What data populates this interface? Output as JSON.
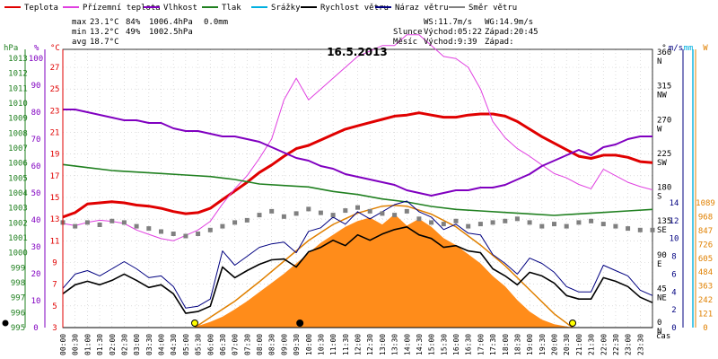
{
  "header": {
    "legend": [
      {
        "name": "Teplota",
        "color": "#e00000"
      },
      {
        "name": "Přízemní teplota",
        "color": "#e040e0"
      },
      {
        "name": "Vlhkost",
        "color": "#8000c0"
      },
      {
        "name": "Tlak",
        "color": "#208020"
      },
      {
        "name": "Srážky",
        "color": "#00b0e0"
      },
      {
        "name": "Rychlost větru",
        "color": "#000000"
      },
      {
        "name": "Náraz větru",
        "color": "#000080"
      },
      {
        "name": "Směr větru",
        "color": "#808080"
      }
    ],
    "stats": {
      "max_label": "max",
      "max_temp": "23.1°C",
      "max_hum": "84%",
      "max_press": "1006.4hPa",
      "max_rain": "0.0mm",
      "min_label": "min",
      "min_temp": "13.2°C",
      "min_hum": "49%",
      "min_press": "1002.5hPa",
      "avg_label": "avg",
      "avg_temp": "18.7°C"
    },
    "wind": {
      "ws": "WS:11.7m/s",
      "wg": "WG:14.9m/s"
    },
    "sun": {
      "label": "Slunce",
      "rise": "Východ:05:22",
      "set": "Západ:20:45"
    },
    "moon": {
      "label": "Měsíc",
      "rise": "Východ:9:39",
      "set": "Západ:"
    }
  },
  "chart_data": {
    "type": "line",
    "title": "16.5.2013",
    "xlabel": "čas",
    "x_ticks": [
      "00:00",
      "00:30",
      "01:00",
      "01:30",
      "02:00",
      "02:30",
      "03:00",
      "03:30",
      "04:00",
      "04:30",
      "05:00",
      "05:30",
      "06:00",
      "06:30",
      "07:00",
      "07:30",
      "08:00",
      "08:30",
      "09:00",
      "09:30",
      "10:00",
      "10:30",
      "11:00",
      "11:30",
      "12:00",
      "12:30",
      "13:00",
      "13:30",
      "14:00",
      "14:30",
      "15:00",
      "15:30",
      "16:00",
      "16:30",
      "17:00",
      "17:30",
      "18:00",
      "18:30",
      "19:00",
      "19:30",
      "20:00",
      "20:30",
      "21:00",
      "21:30",
      "22:00",
      "22:30",
      "23:00",
      "23:30"
    ],
    "axes": {
      "hpa": {
        "label": "hPa",
        "color": "#208020",
        "ticks": [
          995,
          996,
          997,
          998,
          999,
          1000,
          1001,
          1002,
          1003,
          1004,
          1005,
          1006,
          1007,
          1008,
          1009,
          1010,
          1011,
          1012,
          1013
        ]
      },
      "percent": {
        "label": "%",
        "color": "#8000c0",
        "ticks": [
          0,
          10,
          20,
          30,
          40,
          50,
          60,
          70,
          80,
          90,
          100
        ]
      },
      "celsius": {
        "label": "°C",
        "color": "#e00000",
        "ticks": [
          3,
          5,
          7,
          9,
          11,
          13,
          15,
          17,
          19,
          21,
          23,
          25,
          27
        ]
      },
      "degrees": {
        "label": "°",
        "color": "#000000",
        "ticks": [
          0,
          45,
          90,
          135,
          180,
          225,
          270,
          315,
          360
        ]
      },
      "compass": [
        "N",
        "NE",
        "E",
        "SE",
        "S",
        "SW",
        "W",
        "NW",
        "N"
      ],
      "ms": {
        "label": "m/s",
        "color": "#000080",
        "ticks": [
          0,
          2,
          4,
          6,
          8,
          10,
          12,
          14
        ]
      },
      "mm": {
        "label": "mm",
        "color": "#00b0e0"
      },
      "wm2": {
        "label": "W",
        "color": "#e08000",
        "ticks": [
          0,
          121,
          242,
          363,
          484,
          605,
          726,
          847,
          968,
          1089
        ]
      }
    },
    "series": [
      {
        "name": "Teplota",
        "color": "#e00000",
        "unit": "°C",
        "x": [
          0,
          0.5,
          1,
          1.5,
          2,
          2.5,
          3,
          3.5,
          4,
          4.5,
          5,
          5.5,
          6,
          6.5,
          7,
          7.5,
          8,
          8.5,
          9,
          9.5,
          10,
          10.5,
          11,
          11.5,
          12,
          12.5,
          13,
          13.5,
          14,
          14.5,
          15,
          15.5,
          16,
          16.5,
          17,
          17.5,
          18,
          18.5,
          19,
          19.5,
          20,
          20.5,
          21,
          21.5,
          22,
          22.5,
          23,
          23.5,
          24
        ],
        "y": [
          13.2,
          13.6,
          14.4,
          14.5,
          14.6,
          14.5,
          14.3,
          14.2,
          14.0,
          13.7,
          13.5,
          13.6,
          14.0,
          14.8,
          15.6,
          16.4,
          17.3,
          18.0,
          18.8,
          19.5,
          19.8,
          20.3,
          20.8,
          21.3,
          21.6,
          21.9,
          22.2,
          22.5,
          22.6,
          22.8,
          22.6,
          22.4,
          22.4,
          22.6,
          22.7,
          22.7,
          22.5,
          22.0,
          21.3,
          20.6,
          20.0,
          19.4,
          18.8,
          18.6,
          18.9,
          18.9,
          18.7,
          18.3,
          18.2
        ]
      },
      {
        "name": "Přízemní teplota",
        "color": "#e040e0",
        "unit": "°C",
        "x": [
          0,
          0.5,
          1,
          1.5,
          2,
          2.5,
          3,
          3.5,
          4,
          4.5,
          5,
          5.5,
          6,
          6.5,
          7,
          7.5,
          8,
          8.5,
          9,
          9.5,
          10,
          10.5,
          11,
          11.5,
          12,
          12.5,
          13,
          13.5,
          14,
          14.5,
          15,
          15.5,
          16,
          16.5,
          17,
          17.5,
          18,
          18.5,
          19,
          19.5,
          20,
          20.5,
          21,
          21.5,
          22,
          22.5,
          23,
          23.5,
          24
        ],
        "y": [
          12.6,
          12.4,
          12.7,
          12.9,
          12.8,
          12.6,
          12.0,
          11.6,
          11.2,
          11.0,
          11.5,
          12.0,
          12.8,
          14.4,
          15.8,
          17.0,
          18.6,
          20.4,
          24.0,
          26.0,
          24.0,
          25.0,
          26.0,
          27.0,
          28.0,
          28.5,
          29.0,
          29.0,
          30.0,
          30.0,
          29.0,
          28.0,
          27.8,
          27.0,
          25.0,
          22.0,
          20.5,
          19.5,
          18.8,
          18.0,
          17.2,
          16.8,
          16.2,
          15.8,
          17.6,
          17.0,
          16.4,
          16.0,
          15.7
        ]
      },
      {
        "name": "Vlhkost",
        "color": "#8000c0",
        "unit": "%",
        "x": [
          0,
          0.5,
          1,
          1.5,
          2,
          2.5,
          3,
          3.5,
          4,
          4.5,
          5,
          5.5,
          6,
          6.5,
          7,
          7.5,
          8,
          8.5,
          9,
          9.5,
          10,
          10.5,
          11,
          11.5,
          12,
          12.5,
          13,
          13.5,
          14,
          14.5,
          15,
          15.5,
          16,
          16.5,
          17,
          17.5,
          18,
          18.5,
          19,
          19.5,
          20,
          20.5,
          21,
          21.5,
          22,
          22.5,
          23,
          23.5,
          24
        ],
        "y": [
          81,
          81,
          80,
          79,
          78,
          77,
          77,
          76,
          76,
          74,
          73,
          73,
          72,
          71,
          71,
          70,
          69,
          67,
          65,
          63,
          62,
          60,
          59,
          57,
          56,
          55,
          54,
          53,
          51,
          50,
          49,
          50,
          51,
          51,
          52,
          52,
          53,
          55,
          57,
          60,
          62,
          64,
          66,
          64,
          67,
          68,
          70,
          71,
          71
        ]
      },
      {
        "name": "Tlak",
        "color": "#208020",
        "unit": "hPa",
        "x": [
          0,
          1,
          2,
          3,
          4,
          5,
          6,
          7,
          8,
          9,
          10,
          11,
          12,
          13,
          14,
          15,
          16,
          17,
          18,
          19,
          20,
          21,
          22,
          23,
          24
        ],
        "y": [
          1005.9,
          1005.7,
          1005.5,
          1005.4,
          1005.3,
          1005.2,
          1005.1,
          1004.9,
          1004.6,
          1004.5,
          1004.4,
          1004.1,
          1003.9,
          1003.6,
          1003.4,
          1003.1,
          1002.9,
          1002.8,
          1002.7,
          1002.6,
          1002.5,
          1002.6,
          1002.7,
          1002.8,
          1002.9
        ]
      },
      {
        "name": "Rychlost větru",
        "color": "#000000",
        "unit": "m/s",
        "x": [
          0,
          0.5,
          1,
          1.5,
          2,
          2.5,
          3,
          3.5,
          4,
          4.5,
          5,
          5.5,
          6,
          6.5,
          7,
          7.5,
          8,
          8.5,
          9,
          9.5,
          10,
          10.5,
          11,
          11.5,
          12,
          12.5,
          13,
          13.5,
          14,
          14.5,
          15,
          15.5,
          16,
          16.5,
          17,
          17.5,
          18,
          18.5,
          19,
          19.5,
          20,
          20.5,
          21,
          21.5,
          22,
          22.5,
          23,
          23.5,
          24
        ],
        "y": [
          3.8,
          4.8,
          5.2,
          4.8,
          5.3,
          6.0,
          5.3,
          4.5,
          4.8,
          3.8,
          1.6,
          1.8,
          2.4,
          6.8,
          5.6,
          6.4,
          7.1,
          7.6,
          7.7,
          6.8,
          8.5,
          9.0,
          9.8,
          9.2,
          10.4,
          9.8,
          10.5,
          11.0,
          11.3,
          10.4,
          10.0,
          9.0,
          9.2,
          8.6,
          8.4,
          6.6,
          5.8,
          4.8,
          6.2,
          5.8,
          5.0,
          3.6,
          3.2,
          3.2,
          5.6,
          5.2,
          4.6,
          3.4,
          2.8
        ]
      },
      {
        "name": "Náraz větru",
        "color": "#000080",
        "unit": "m/s",
        "x": [
          0,
          0.5,
          1,
          1.5,
          2,
          2.5,
          3,
          3.5,
          4,
          4.5,
          5,
          5.5,
          6,
          6.5,
          7,
          7.5,
          8,
          8.5,
          9,
          9.5,
          10,
          10.5,
          11,
          11.5,
          12,
          12.5,
          13,
          13.5,
          14,
          14.5,
          15,
          15.5,
          16,
          16.5,
          17,
          17.5,
          18,
          18.5,
          19,
          19.5,
          20,
          20.5,
          21,
          21.5,
          22,
          22.5,
          23,
          23.5,
          24
        ],
        "y": [
          4.4,
          6.0,
          6.4,
          5.8,
          6.6,
          7.4,
          6.6,
          5.6,
          5.8,
          4.6,
          2.2,
          2.4,
          3.2,
          8.6,
          7.0,
          8.0,
          9.0,
          9.4,
          9.6,
          8.4,
          10.8,
          11.2,
          12.4,
          11.6,
          13.0,
          12.2,
          13.0,
          13.8,
          14.2,
          13.0,
          12.4,
          11.0,
          11.6,
          10.6,
          10.4,
          8.2,
          7.2,
          6.0,
          7.8,
          7.2,
          6.2,
          4.6,
          4.0,
          4.0,
          7.0,
          6.4,
          5.8,
          4.2,
          3.6
        ]
      },
      {
        "name": "Směr větru",
        "color": "#808080",
        "unit": "°",
        "x": [
          0,
          0.5,
          1,
          1.5,
          2,
          2.5,
          3,
          3.5,
          4,
          4.5,
          5,
          5.5,
          6,
          6.5,
          7,
          7.5,
          8,
          8.5,
          9,
          9.5,
          10,
          10.5,
          11,
          11.5,
          12,
          12.5,
          13,
          13.5,
          14,
          14.5,
          15,
          15.5,
          16,
          16.5,
          17,
          17.5,
          18,
          18.5,
          19,
          19.5,
          20,
          20.5,
          21,
          21.5,
          22,
          22.5,
          23,
          23.5,
          24
        ],
        "y": [
          140,
          135,
          140,
          137,
          142,
          140,
          135,
          132,
          128,
          125,
          122,
          125,
          130,
          135,
          140,
          143,
          150,
          155,
          148,
          152,
          158,
          153,
          150,
          156,
          160,
          155,
          152,
          150,
          155,
          145,
          140,
          138,
          142,
          135,
          138,
          140,
          142,
          145,
          140,
          135,
          138,
          135,
          140,
          142,
          138,
          135,
          132,
          130,
          130
        ]
      },
      {
        "name": "Solární záření",
        "color": "#ff8c1a",
        "unit": "W/m²",
        "x": [
          0,
          5.3,
          5.5,
          6,
          6.5,
          7,
          7.5,
          8,
          8.5,
          9,
          9.5,
          10,
          10.5,
          11,
          11.5,
          12,
          12.5,
          13,
          13.5,
          14,
          14.5,
          15,
          15.5,
          16,
          16.5,
          17,
          17.5,
          18,
          18.5,
          19,
          19.5,
          20,
          20.5,
          20.75,
          24
        ],
        "y": [
          0,
          0,
          15,
          50,
          95,
          160,
          230,
          310,
          390,
          470,
          560,
          650,
          740,
          810,
          880,
          930,
          960,
          900,
          990,
          890,
          950,
          880,
          780,
          720,
          640,
          560,
          450,
          360,
          240,
          140,
          70,
          30,
          10,
          0,
          0
        ]
      },
      {
        "name": "Teoretické záření",
        "color": "#e08000",
        "unit": "W/m²",
        "x": [
          5.37,
          6,
          7,
          8,
          9,
          10,
          11,
          12,
          13,
          13.5,
          14,
          15,
          16,
          17,
          18,
          19,
          20,
          20.75
        ],
        "y": [
          0,
          90,
          230,
          400,
          580,
          760,
          900,
          1000,
          1060,
          1066,
          1060,
          990,
          880,
          720,
          540,
          330,
          120,
          0
        ]
      }
    ],
    "markers": [
      {
        "name": "Východ slunce",
        "x": 5.37,
        "color": "#ffff00"
      },
      {
        "name": "Západ slunce",
        "x": 20.75,
        "color": "#ffff00"
      },
      {
        "name": "Východ měsíce",
        "x": 9.65,
        "color": "#000000"
      }
    ]
  }
}
